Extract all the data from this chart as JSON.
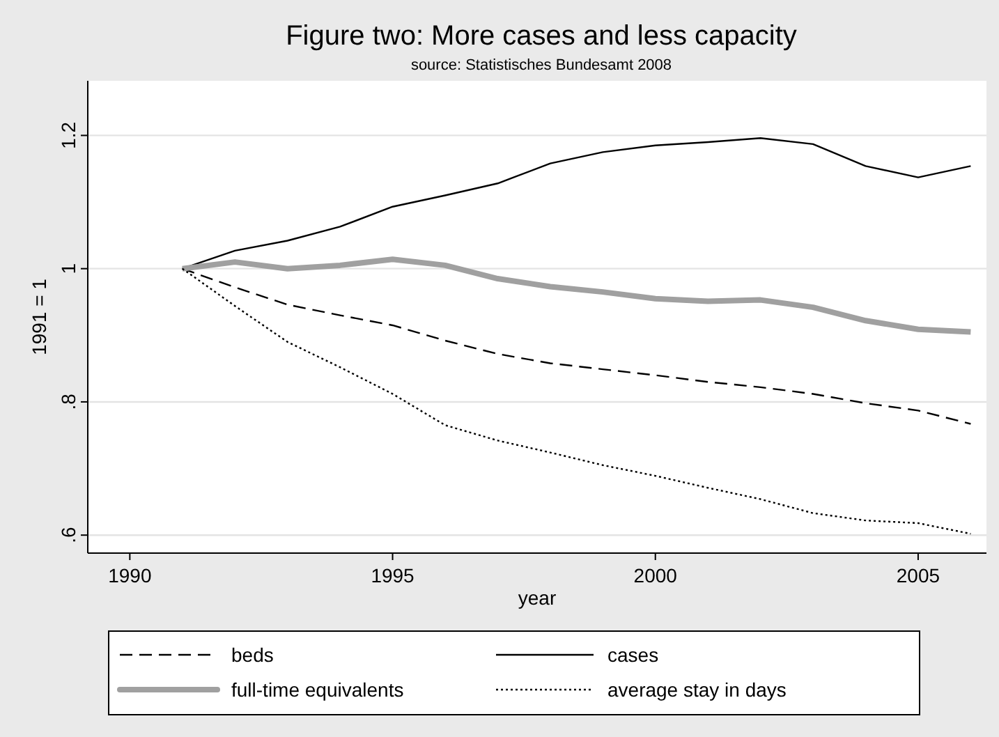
{
  "chart_data": {
    "type": "line",
    "title": "Figure two: More cases and less capacity",
    "subtitle": "source: Statistisches Bundesamt 2008",
    "xlabel": "year",
    "ylabel": "1991 = 1",
    "x": [
      1991,
      1992,
      1993,
      1994,
      1995,
      1996,
      1997,
      1998,
      1999,
      2000,
      2001,
      2002,
      2003,
      2004,
      2005,
      2006
    ],
    "series": [
      {
        "name": "beds",
        "color": "#000000",
        "line_style": "dashed",
        "values": [
          1.0,
          0.972,
          0.946,
          0.93,
          0.915,
          0.892,
          0.872,
          0.858,
          0.849,
          0.84,
          0.83,
          0.822,
          0.812,
          0.798,
          0.787,
          0.767
        ]
      },
      {
        "name": "cases",
        "color": "#000000",
        "line_style": "solid",
        "values": [
          1.0,
          1.027,
          1.042,
          1.063,
          1.093,
          1.11,
          1.128,
          1.158,
          1.175,
          1.185,
          1.19,
          1.196,
          1.187,
          1.154,
          1.137,
          1.154
        ]
      },
      {
        "name": "full-time equivalents",
        "color": "#a0a0a0",
        "line_style": "solid",
        "values": [
          1.0,
          1.01,
          1.0,
          1.005,
          1.014,
          1.005,
          0.985,
          0.973,
          0.965,
          0.955,
          0.951,
          0.953,
          0.942,
          0.922,
          0.909,
          0.905
        ]
      },
      {
        "name": "average stay in days",
        "color": "#000000",
        "line_style": "dotted",
        "values": [
          1.0,
          0.944,
          0.89,
          0.852,
          0.812,
          0.765,
          0.742,
          0.724,
          0.705,
          0.689,
          0.671,
          0.654,
          0.633,
          0.622,
          0.618,
          0.602
        ]
      }
    ],
    "xlim": [
      1989.2,
      2006.3
    ],
    "ylim": [
      0.573,
      1.282
    ],
    "xticks": [
      1990,
      1995,
      2000,
      2005
    ],
    "yticks": [
      {
        "value": 0.6,
        "label": ".6"
      },
      {
        "value": 0.8,
        "label": ".8"
      },
      {
        "value": 1,
        "label": "1"
      },
      {
        "value": 1.2,
        "label": "1.2"
      }
    ],
    "grid": "y",
    "legend": "bottom",
    "marker": "none"
  }
}
